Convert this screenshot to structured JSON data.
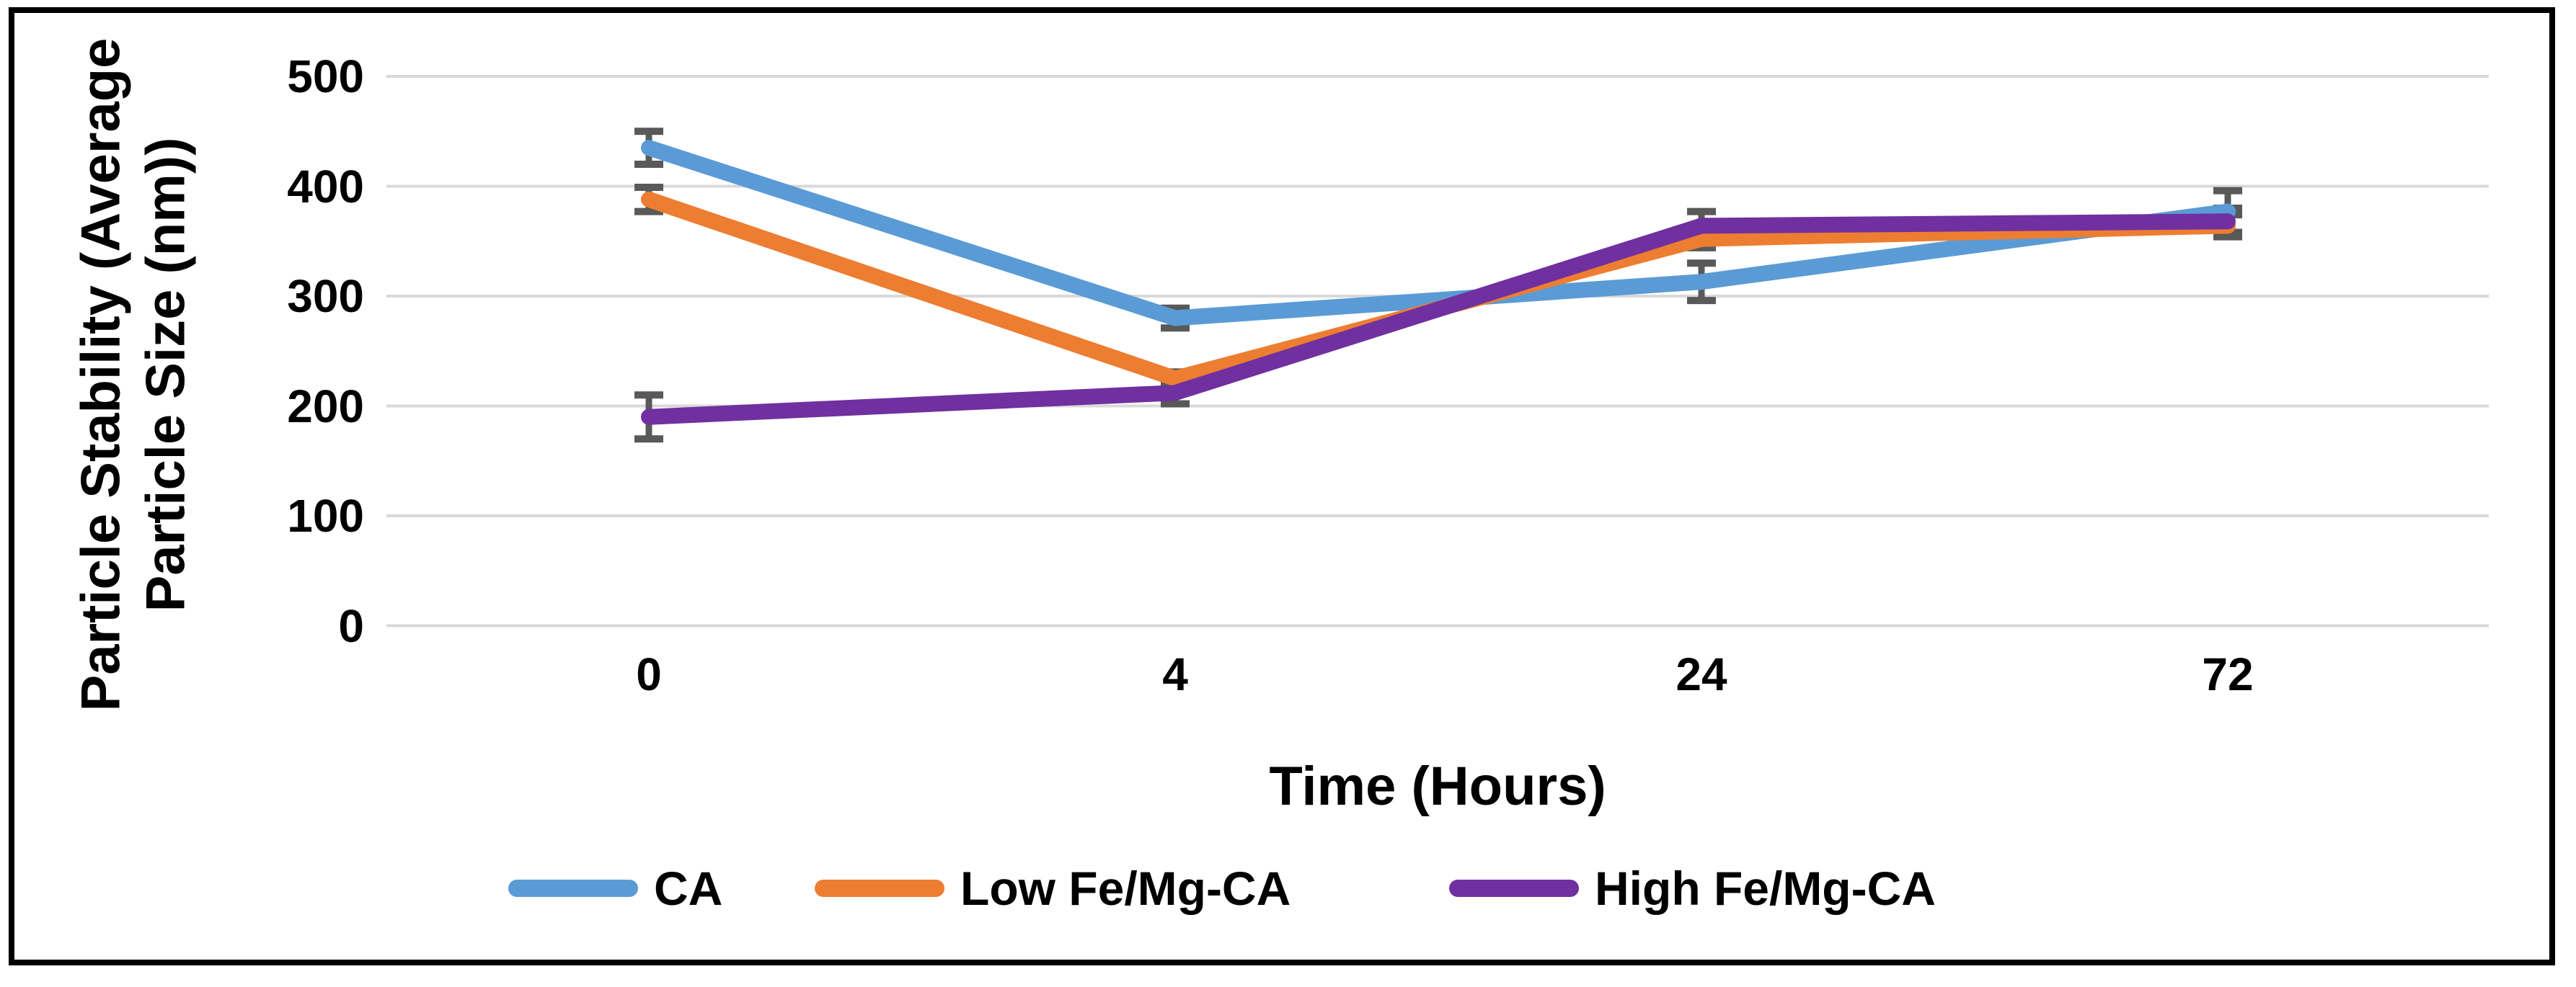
{
  "chart_data": {
    "type": "line",
    "title": "",
    "xlabel": "Time (Hours)",
    "ylabel_line1": "Particle Stability (Average",
    "ylabel_line2": "Particle Size (nm))",
    "categories": [
      "0",
      "4",
      "24",
      "72"
    ],
    "y_ticks": [
      "500",
      "400",
      "300",
      "200",
      "100",
      "0"
    ],
    "ylim": [
      0,
      500
    ],
    "grid": true,
    "legend_position": "bottom",
    "series": [
      {
        "name": "CA",
        "color": "#5B9BD5",
        "values": [
          435,
          280,
          313,
          377
        ],
        "errors": [
          15,
          9,
          17,
          19
        ]
      },
      {
        "name": "Low Fe/Mg-CA",
        "color": "#ED7D31",
        "values": [
          388,
          225,
          352,
          364
        ],
        "errors": [
          11,
          6,
          8,
          10
        ]
      },
      {
        "name": "High Fe/Mg-CA",
        "color": "#7030A0",
        "values": [
          190,
          212,
          364,
          368
        ],
        "errors": [
          20,
          10,
          13,
          12
        ]
      }
    ],
    "colors": {
      "background": "#FFFFFF",
      "border": "#000000",
      "gridline": "#D9D9D9",
      "error_bar": "#595959",
      "text": "#000000"
    }
  }
}
